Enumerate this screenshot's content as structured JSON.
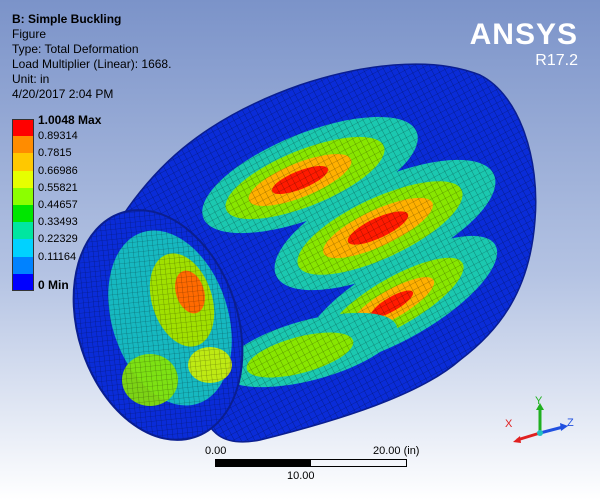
{
  "info": {
    "title": "B: Simple Buckling",
    "lines": [
      "Figure",
      "Type: Total Deformation",
      "Load Multiplier (Linear): 1668.",
      "Unit: in",
      "4/20/2017 2:04 PM"
    ]
  },
  "logo": {
    "brand": "ANSYS",
    "version": "R17.2"
  },
  "legend": {
    "entries": [
      {
        "label": "1.0048 Max",
        "color": "#ff0000",
        "bold": true
      },
      {
        "label": "0.89314",
        "color": "#ff8c00",
        "bold": false
      },
      {
        "label": "0.7815",
        "color": "#ffc800",
        "bold": false
      },
      {
        "label": "0.66986",
        "color": "#e6ff00",
        "bold": false
      },
      {
        "label": "0.55821",
        "color": "#8cff00",
        "bold": false
      },
      {
        "label": "0.44657",
        "color": "#00e600",
        "bold": false
      },
      {
        "label": "0.33493",
        "color": "#00e6a0",
        "bold": false
      },
      {
        "label": "0.22329",
        "color": "#00d2ff",
        "bold": false
      },
      {
        "label": "0.11164",
        "color": "#0082ff",
        "bold": false
      },
      {
        "label": "0 Min",
        "color": "#0000ff",
        "bold": true
      }
    ]
  },
  "scale": {
    "start": "0.00",
    "end": "20.00 (in)",
    "mid": "10.00"
  },
  "triad": {
    "x": "X",
    "y": "Y",
    "z": "Z",
    "x_color": "#e02020",
    "y_color": "#20b020",
    "z_color": "#2050e0"
  }
}
